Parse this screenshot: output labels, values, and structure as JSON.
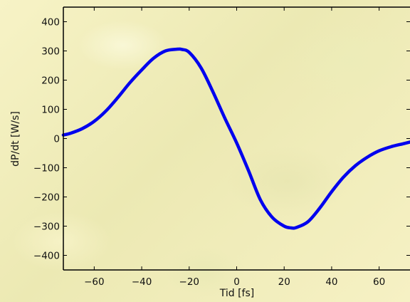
{
  "chart_data": {
    "type": "line",
    "title": "",
    "xlabel": "Tid [fs]",
    "ylabel": "dP/dt [W/s]",
    "xlim": [
      -73,
      73
    ],
    "ylim": [
      -450,
      450
    ],
    "xticks": [
      -60,
      -40,
      -20,
      0,
      20,
      40,
      60
    ],
    "yticks": [
      -400,
      -300,
      -200,
      -100,
      0,
      100,
      200,
      300,
      400
    ],
    "xtick_labels": [
      "−60",
      "−40",
      "−20",
      "0",
      "20",
      "40",
      "60"
    ],
    "ytick_labels": [
      "−400",
      "−300",
      "−200",
      "−100",
      "0",
      "100",
      "200",
      "300",
      "400"
    ],
    "grid": false,
    "series": [
      {
        "color": "#0000ee",
        "x": [
          -73,
          -70,
          -65,
          -60,
          -55,
          -50,
          -45,
          -40,
          -35,
          -30,
          -25,
          -23,
          -20,
          -15,
          -10,
          -5,
          0,
          5,
          10,
          15,
          20,
          23,
          25,
          30,
          35,
          40,
          45,
          50,
          55,
          60,
          65,
          70,
          73
        ],
        "y": [
          12,
          18,
          34,
          59,
          95,
          141,
          191,
          235,
          275,
          300,
          306,
          305,
          295,
          242,
          160,
          70,
          -15,
          -110,
          -210,
          -270,
          -300,
          -306,
          -305,
          -285,
          -238,
          -182,
          -132,
          -93,
          -64,
          -42,
          -28,
          -18,
          -12
        ]
      }
    ]
  }
}
